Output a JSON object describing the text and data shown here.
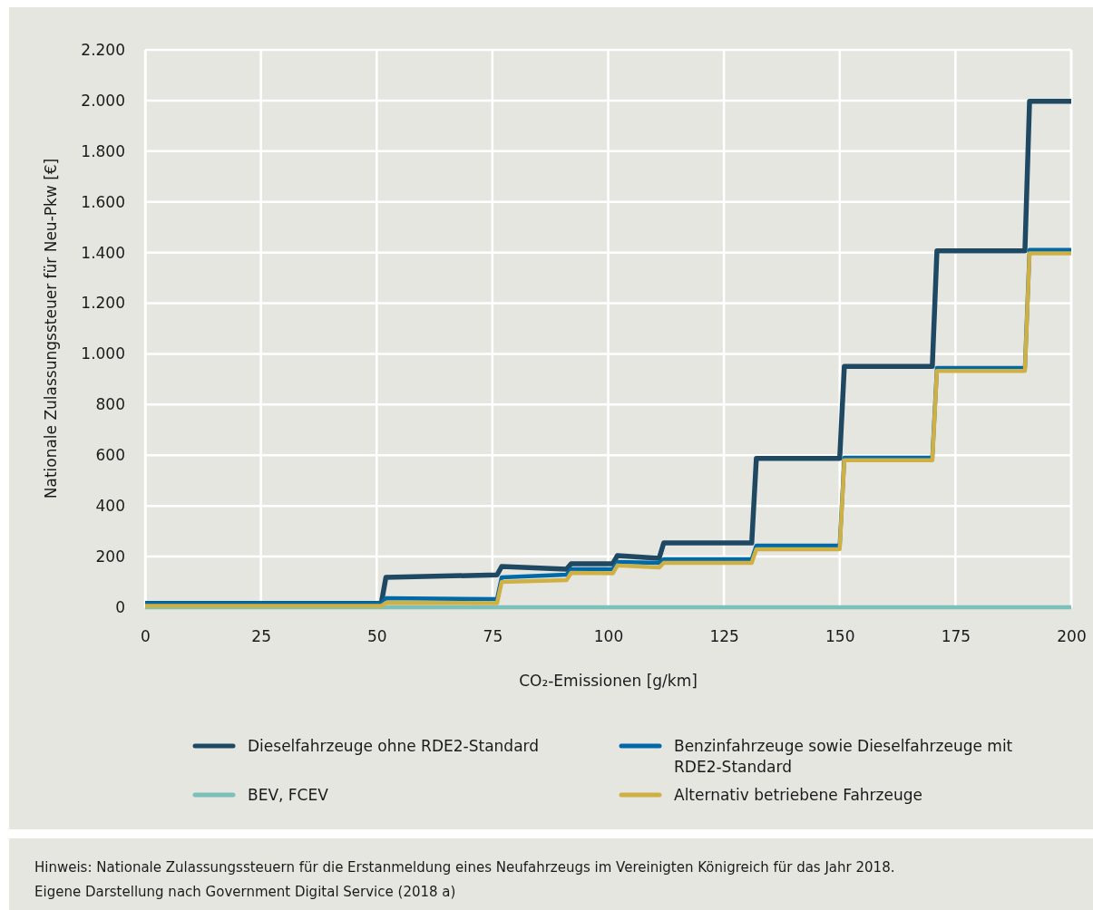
{
  "chart_data": {
    "type": "line",
    "xlabel": "CO₂-Emissionen [g/km]",
    "ylabel": "Nationale Zulassungssteuer für Neu-Pkw [€]",
    "xlim": [
      0,
      200
    ],
    "xticks": [
      0,
      25,
      50,
      75,
      100,
      125,
      150,
      175,
      200
    ],
    "ylim": [
      0,
      2200
    ],
    "yticks": [
      0,
      200,
      400,
      600,
      800,
      {
        "value": 1000,
        "label": "1.000"
      },
      {
        "value": 1200,
        "label": "1.200"
      },
      {
        "value": 1400,
        "label": "1.400"
      },
      {
        "value": 1600,
        "label": "1.600"
      },
      {
        "value": 1800,
        "label": "1.800"
      },
      {
        "value": 2000,
        "label": "2.000"
      },
      {
        "value": 2200,
        "label": "2.200"
      }
    ],
    "grid": true,
    "legend": "bottom",
    "line_style": "solid",
    "marker": "none",
    "series": [
      {
        "name": "Dieselfahrzeuge ohne RDE2-Standard",
        "color": "#1f4863",
        "x": [
          0,
          51,
          52,
          76,
          77,
          91,
          92,
          101,
          102,
          111,
          112,
          131,
          132,
          150,
          151,
          170,
          171,
          190,
          191,
          200
        ],
        "values": [
          15,
          15,
          118,
          128,
          161,
          150,
          172,
          172,
          204,
          193,
          254,
          254,
          588,
          588,
          951,
          951,
          1407,
          1407,
          1997,
          1997
        ]
      },
      {
        "name": "Benzinfahrzeuge sowie Dieselfahrzeuge mit RDE2-Standard",
        "color": "#0069a8",
        "x": [
          0,
          51,
          52,
          76,
          77,
          91,
          92,
          101,
          102,
          111,
          112,
          131,
          132,
          150,
          151,
          170,
          171,
          190,
          191,
          200
        ],
        "values": [
          15,
          15,
          36,
          32,
          118,
          129,
          150,
          150,
          179,
          175,
          190,
          190,
          243,
          243,
          590,
          590,
          944,
          944,
          1410,
          1410
        ]
      },
      {
        "name": "BEV, FCEV",
        "color": "#7cc0b9",
        "x": [
          0,
          200
        ],
        "values": [
          0,
          0
        ]
      },
      {
        "name": "Alternativ betriebene Fahrzeuge",
        "color": "#cfb044",
        "x": [
          0,
          51,
          52,
          76,
          77,
          91,
          92,
          101,
          102,
          111,
          112,
          131,
          132,
          150,
          151,
          170,
          171,
          190,
          191,
          200
        ],
        "values": [
          5,
          5,
          18,
          16,
          100,
          107,
          136,
          134,
          165,
          157,
          175,
          175,
          229,
          229,
          580,
          580,
          933,
          933,
          1397,
          1397
        ]
      }
    ],
    "annotations": [
      "Hinweis: Nationale Zulassungssteuern für die Erstanmeldung eines Neufahrzeugs im Vereinigten Königreich für das Jahr 2018.",
      "Eigene Darstellung nach Government Digital Service (2018 a)"
    ]
  }
}
